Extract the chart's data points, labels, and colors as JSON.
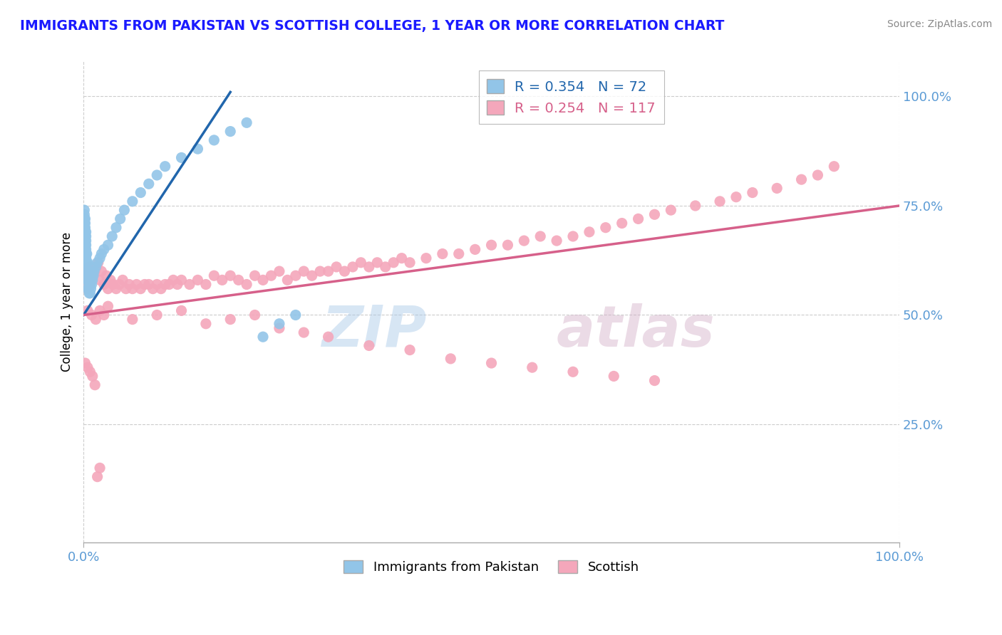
{
  "title": "IMMIGRANTS FROM PAKISTAN VS SCOTTISH COLLEGE, 1 YEAR OR MORE CORRELATION CHART",
  "source_text": "Source: ZipAtlas.com",
  "ylabel": "College, 1 year or more",
  "xlim": [
    0,
    1.0
  ],
  "ylim": [
    -0.02,
    1.08
  ],
  "xtick_positions": [
    0.0,
    1.0
  ],
  "xtick_labels": [
    "0.0%",
    "100.0%"
  ],
  "ytick_positions": [
    0.25,
    0.5,
    0.75,
    1.0
  ],
  "ytick_labels": [
    "25.0%",
    "50.0%",
    "75.0%",
    "100.0%"
  ],
  "legend_blue_R": "0.354",
  "legend_blue_N": "72",
  "legend_pink_R": "0.254",
  "legend_pink_N": "117",
  "legend_bottom_blue": "Immigrants from Pakistan",
  "legend_bottom_pink": "Scottish",
  "blue_color": "#92c5e8",
  "pink_color": "#f4a7bb",
  "blue_line_color": "#2166ac",
  "pink_line_color": "#d6608a",
  "title_color": "#1a1aff",
  "source_color": "#888888",
  "tick_color": "#5b9bd5",
  "watermark_zip": "ZIP",
  "watermark_atlas": "atlas",
  "grid_color": "#cccccc",
  "blue_line_x0": 0.0,
  "blue_line_x1": 0.18,
  "blue_line_y0": 0.5,
  "blue_line_y1": 1.01,
  "pink_line_x0": 0.0,
  "pink_line_x1": 1.0,
  "pink_line_y0": 0.5,
  "pink_line_y1": 0.75,
  "blue_x": [
    0.001,
    0.001,
    0.001,
    0.001,
    0.001,
    0.001,
    0.001,
    0.001,
    0.001,
    0.001,
    0.002,
    0.002,
    0.002,
    0.002,
    0.002,
    0.002,
    0.002,
    0.002,
    0.002,
    0.002,
    0.003,
    0.003,
    0.003,
    0.003,
    0.003,
    0.003,
    0.003,
    0.003,
    0.003,
    0.003,
    0.004,
    0.004,
    0.004,
    0.004,
    0.005,
    0.005,
    0.005,
    0.005,
    0.006,
    0.006,
    0.007,
    0.007,
    0.008,
    0.008,
    0.009,
    0.01,
    0.011,
    0.012,
    0.013,
    0.015,
    0.017,
    0.02,
    0.022,
    0.025,
    0.03,
    0.035,
    0.04,
    0.045,
    0.05,
    0.06,
    0.07,
    0.08,
    0.09,
    0.1,
    0.12,
    0.14,
    0.16,
    0.18,
    0.2,
    0.22,
    0.24,
    0.26
  ],
  "blue_y": [
    0.64,
    0.66,
    0.67,
    0.68,
    0.69,
    0.7,
    0.71,
    0.72,
    0.73,
    0.74,
    0.62,
    0.64,
    0.65,
    0.66,
    0.67,
    0.68,
    0.69,
    0.7,
    0.71,
    0.72,
    0.6,
    0.61,
    0.62,
    0.63,
    0.64,
    0.65,
    0.66,
    0.67,
    0.68,
    0.69,
    0.58,
    0.6,
    0.62,
    0.64,
    0.56,
    0.58,
    0.6,
    0.62,
    0.56,
    0.58,
    0.55,
    0.57,
    0.55,
    0.57,
    0.56,
    0.57,
    0.58,
    0.59,
    0.6,
    0.61,
    0.62,
    0.63,
    0.64,
    0.65,
    0.66,
    0.68,
    0.7,
    0.72,
    0.74,
    0.76,
    0.78,
    0.8,
    0.82,
    0.84,
    0.86,
    0.88,
    0.9,
    0.92,
    0.94,
    0.45,
    0.48,
    0.5
  ],
  "pink_x": [
    0.002,
    0.004,
    0.005,
    0.007,
    0.008,
    0.01,
    0.012,
    0.014,
    0.016,
    0.018,
    0.02,
    0.022,
    0.025,
    0.028,
    0.03,
    0.033,
    0.036,
    0.04,
    0.044,
    0.048,
    0.052,
    0.056,
    0.06,
    0.065,
    0.07,
    0.075,
    0.08,
    0.085,
    0.09,
    0.095,
    0.1,
    0.105,
    0.11,
    0.115,
    0.12,
    0.13,
    0.14,
    0.15,
    0.16,
    0.17,
    0.18,
    0.19,
    0.2,
    0.21,
    0.22,
    0.23,
    0.24,
    0.25,
    0.26,
    0.27,
    0.28,
    0.29,
    0.3,
    0.31,
    0.32,
    0.33,
    0.34,
    0.35,
    0.36,
    0.37,
    0.38,
    0.39,
    0.4,
    0.42,
    0.44,
    0.46,
    0.48,
    0.5,
    0.52,
    0.54,
    0.56,
    0.58,
    0.6,
    0.62,
    0.64,
    0.66,
    0.68,
    0.7,
    0.72,
    0.75,
    0.78,
    0.8,
    0.82,
    0.85,
    0.88,
    0.9,
    0.92,
    0.005,
    0.01,
    0.015,
    0.02,
    0.025,
    0.03,
    0.06,
    0.09,
    0.12,
    0.15,
    0.18,
    0.21,
    0.24,
    0.27,
    0.3,
    0.35,
    0.4,
    0.45,
    0.5,
    0.55,
    0.6,
    0.65,
    0.7,
    0.002,
    0.005,
    0.008,
    0.011,
    0.014,
    0.017,
    0.02
  ],
  "pink_y": [
    0.58,
    0.6,
    0.56,
    0.61,
    0.57,
    0.58,
    0.59,
    0.6,
    0.61,
    0.62,
    0.58,
    0.6,
    0.57,
    0.59,
    0.56,
    0.58,
    0.57,
    0.56,
    0.57,
    0.58,
    0.56,
    0.57,
    0.56,
    0.57,
    0.56,
    0.57,
    0.57,
    0.56,
    0.57,
    0.56,
    0.57,
    0.57,
    0.58,
    0.57,
    0.58,
    0.57,
    0.58,
    0.57,
    0.59,
    0.58,
    0.59,
    0.58,
    0.57,
    0.59,
    0.58,
    0.59,
    0.6,
    0.58,
    0.59,
    0.6,
    0.59,
    0.6,
    0.6,
    0.61,
    0.6,
    0.61,
    0.62,
    0.61,
    0.62,
    0.61,
    0.62,
    0.63,
    0.62,
    0.63,
    0.64,
    0.64,
    0.65,
    0.66,
    0.66,
    0.67,
    0.68,
    0.67,
    0.68,
    0.69,
    0.7,
    0.71,
    0.72,
    0.73,
    0.74,
    0.75,
    0.76,
    0.77,
    0.78,
    0.79,
    0.81,
    0.82,
    0.84,
    0.51,
    0.5,
    0.49,
    0.51,
    0.5,
    0.52,
    0.49,
    0.5,
    0.51,
    0.48,
    0.49,
    0.5,
    0.47,
    0.46,
    0.45,
    0.43,
    0.42,
    0.4,
    0.39,
    0.38,
    0.37,
    0.36,
    0.35,
    0.39,
    0.38,
    0.37,
    0.36,
    0.34,
    0.13,
    0.15
  ]
}
